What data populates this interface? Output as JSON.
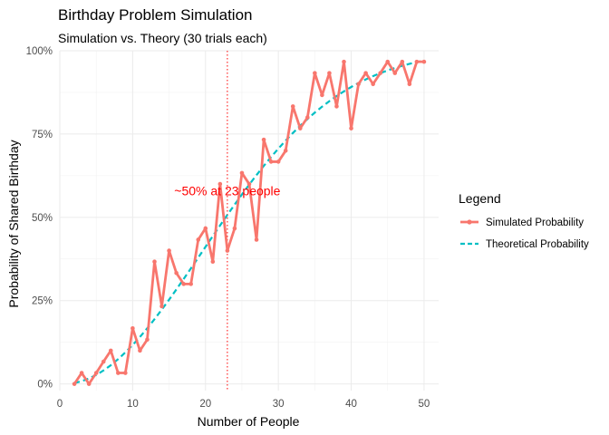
{
  "chart_data": {
    "type": "line",
    "title": "Birthday Problem Simulation",
    "subtitle": "Simulation vs. Theory (30 trials each)",
    "xlabel": "Number of People",
    "ylabel": "Probability of Shared Birthday",
    "xlim": [
      0,
      52
    ],
    "ylim": [
      -0.02,
      1.0
    ],
    "x_ticks": [
      0,
      10,
      20,
      30,
      40,
      50
    ],
    "y_ticks": [
      0,
      0.25,
      0.5,
      0.75,
      1.0
    ],
    "y_tick_labels": [
      "0%",
      "25%",
      "50%",
      "75%",
      "100%"
    ],
    "grid": true,
    "legend": {
      "title": "Legend",
      "position": "right"
    },
    "x": [
      2,
      3,
      4,
      5,
      6,
      7,
      8,
      9,
      10,
      11,
      12,
      13,
      14,
      15,
      16,
      17,
      18,
      19,
      20,
      21,
      22,
      23,
      24,
      25,
      26,
      27,
      28,
      29,
      30,
      31,
      32,
      33,
      34,
      35,
      36,
      37,
      38,
      39,
      40,
      41,
      42,
      43,
      44,
      45,
      46,
      47,
      48,
      49,
      50
    ],
    "series": [
      {
        "name": "Simulated Probability",
        "color": "#f8766d",
        "style": "solid-points",
        "values": [
          0.0,
          0.033,
          0.0,
          0.033,
          0.067,
          0.1,
          0.033,
          0.033,
          0.167,
          0.1,
          0.133,
          0.367,
          0.233,
          0.4,
          0.333,
          0.3,
          0.3,
          0.433,
          0.467,
          0.367,
          0.6,
          0.4,
          0.467,
          0.633,
          0.6,
          0.433,
          0.733,
          0.667,
          0.667,
          0.7,
          0.833,
          0.767,
          0.8,
          0.933,
          0.867,
          0.933,
          0.833,
          0.967,
          0.767,
          0.9,
          0.933,
          0.9,
          0.933,
          0.967,
          0.933,
          0.967,
          0.9,
          0.967,
          0.967
        ]
      },
      {
        "name": "Theoretical Probability",
        "color": "#00bfc4",
        "style": "dashed",
        "values": [
          0.0027,
          0.0082,
          0.0164,
          0.0271,
          0.0405,
          0.0562,
          0.0743,
          0.0946,
          0.1169,
          0.1411,
          0.167,
          0.1944,
          0.2231,
          0.2529,
          0.2836,
          0.315,
          0.3469,
          0.3791,
          0.4114,
          0.4437,
          0.4757,
          0.5073,
          0.5383,
          0.5687,
          0.5982,
          0.6269,
          0.6545,
          0.681,
          0.7063,
          0.7305,
          0.7533,
          0.775,
          0.7953,
          0.8144,
          0.8322,
          0.8487,
          0.8641,
          0.8782,
          0.8912,
          0.9032,
          0.914,
          0.9239,
          0.9329,
          0.941,
          0.9483,
          0.9548,
          0.9606,
          0.9658,
          0.9704
        ]
      }
    ],
    "reference_line": {
      "x": 23,
      "color": "#ff0000",
      "style": "dotted"
    },
    "annotation": {
      "text": "~50% at 23 people",
      "x": 23,
      "y": 0.58,
      "color": "#ff0000"
    }
  }
}
